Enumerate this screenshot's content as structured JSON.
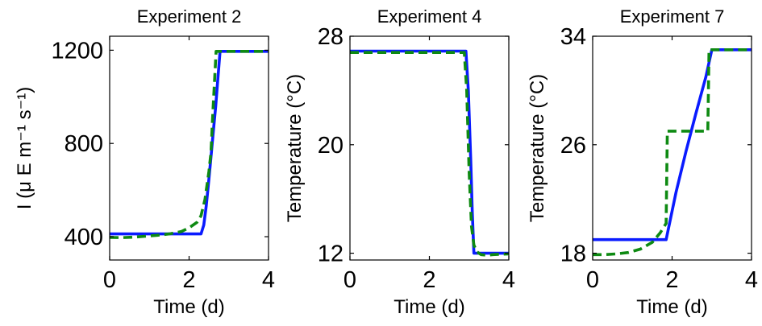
{
  "chart_data": [
    {
      "type": "line",
      "title": "Experiment 2",
      "xlabel": "Time (d)",
      "ylabel": "I (μ E m⁻¹ s⁻¹)",
      "xlim": [
        0,
        4
      ],
      "ylim": [
        300,
        1260
      ],
      "xticks": [
        0,
        2,
        4
      ],
      "yticks": [
        400,
        800,
        1200
      ],
      "grid": false,
      "series": [
        {
          "style": "solid",
          "color": "#0a1bff",
          "x": [
            0,
            2.3,
            2.37,
            2.43,
            2.49,
            2.55,
            2.61,
            2.67,
            2.72,
            2.78,
            4
          ],
          "y": [
            412,
            412,
            450,
            530,
            630,
            740,
            850,
            960,
            1070,
            1195,
            1195
          ]
        },
        {
          "style": "dashed",
          "color": "#0e8a12",
          "x": [
            0,
            0.3,
            0.6,
            0.9,
            1.2,
            1.5,
            1.8,
            2.0,
            2.2,
            2.3,
            2.4,
            2.5,
            2.55,
            2.6,
            2.68,
            4
          ],
          "y": [
            397,
            396,
            398,
            402,
            406,
            412,
            422,
            438,
            462,
            490,
            560,
            680,
            760,
            940,
            1195,
            1195
          ]
        }
      ]
    },
    {
      "type": "line",
      "title": "Experiment 4",
      "xlabel": "Time (d)",
      "ylabel": "Temperature (°C)",
      "xlim": [
        0,
        4
      ],
      "ylim": [
        11.5,
        28
      ],
      "xticks": [
        0,
        2,
        4
      ],
      "yticks": [
        12,
        20,
        28
      ],
      "grid": false,
      "series": [
        {
          "style": "solid",
          "color": "#0a1bff",
          "x": [
            0,
            2.92,
            2.98,
            3.04,
            3.08,
            3.12,
            4
          ],
          "y": [
            26.9,
            26.9,
            24.0,
            19.0,
            15.0,
            12.0,
            12.0
          ]
        },
        {
          "style": "dashed",
          "color": "#0e8a12",
          "x": [
            0,
            2.88,
            2.94,
            3.0,
            3.06,
            3.12,
            3.2,
            3.3,
            3.45,
            3.6,
            4
          ],
          "y": [
            26.8,
            26.8,
            24.0,
            18.0,
            14.0,
            12.6,
            12.1,
            11.9,
            11.85,
            11.9,
            11.95
          ]
        }
      ]
    },
    {
      "type": "line",
      "title": "Experiment 7",
      "xlabel": "Time (d)",
      "ylabel": "Temperature (°C)",
      "xlim": [
        0,
        4
      ],
      "ylim": [
        17.5,
        34
      ],
      "xticks": [
        0,
        2,
        4
      ],
      "yticks": [
        18,
        26,
        34
      ],
      "grid": false,
      "series": [
        {
          "style": "solid",
          "color": "#0a1bff",
          "x": [
            0,
            1.85,
            2.1,
            2.35,
            2.6,
            2.85,
            3.0,
            4
          ],
          "y": [
            19.0,
            19.0,
            22.5,
            25.5,
            28.3,
            31.0,
            33.0,
            33.0
          ]
        },
        {
          "style": "dashed",
          "color": "#0e8a12",
          "x": [
            0,
            0.3,
            0.6,
            0.9,
            1.2,
            1.5,
            1.7,
            1.85,
            1.88,
            2.9,
            2.93,
            4
          ],
          "y": [
            17.9,
            17.9,
            17.95,
            18.05,
            18.3,
            18.8,
            19.5,
            20.2,
            27.0,
            27.0,
            33.0,
            33.0
          ]
        }
      ]
    }
  ]
}
